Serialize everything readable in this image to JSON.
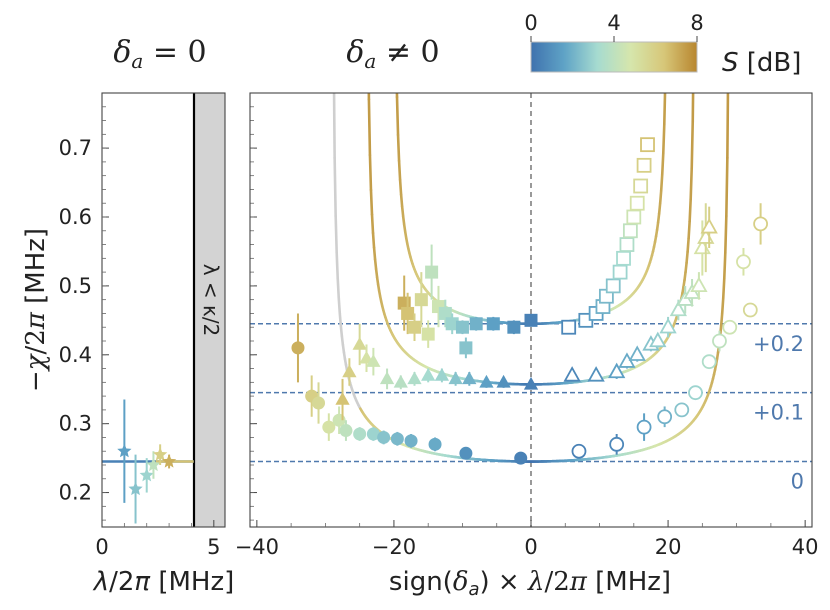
{
  "colors": {
    "cmap": [
      "#3f72ae",
      "#5fa3c6",
      "#a6dbd0",
      "#d6e6ac",
      "#d7c779",
      "#b8862f"
    ],
    "dash": "#4f79ad",
    "center_line": "#808080",
    "bound_shade": "#d3d3d3",
    "grey_curve": "#cfcfcf"
  },
  "colorbar": {
    "label": "S [dB]",
    "ticks": [
      "0",
      "4",
      "8"
    ],
    "range": [
      0,
      8
    ]
  },
  "titles": {
    "left": "δa = 0",
    "right": "δa ≠ 0"
  },
  "chart_data": [
    {
      "panel": "left",
      "type": "scatter",
      "title": "δa = 0",
      "xlabel": "λ/2π [MHz]",
      "ylabel": "−χ/2π [MHz]",
      "xlim": [
        0,
        5.5
      ],
      "ylim": [
        0.15,
        0.78
      ],
      "xticks": [
        "0",
        "5"
      ],
      "yticks": [
        "0.2",
        "0.3",
        "0.4",
        "0.5",
        "0.6",
        "0.7"
      ],
      "bound_label": "λ < κ/2",
      "bound_x": 4.1,
      "baseline_y": 0.245,
      "points": [
        {
          "x": 1.0,
          "y": 0.26,
          "err": 0.075,
          "S": 1.5,
          "marker": "star"
        },
        {
          "x": 1.5,
          "y": 0.205,
          "err": 0.05,
          "S": 2.5,
          "marker": "star"
        },
        {
          "x": 2.0,
          "y": 0.225,
          "err": 0.025,
          "S": 3.0,
          "marker": "star"
        },
        {
          "x": 2.3,
          "y": 0.24,
          "err": 0.02,
          "S": 4.0,
          "marker": "star"
        },
        {
          "x": 2.6,
          "y": 0.255,
          "err": 0.015,
          "S": 6.0,
          "marker": "star"
        },
        {
          "x": 3.0,
          "y": 0.245,
          "err": 0.01,
          "S": 7.0,
          "marker": "star"
        }
      ]
    },
    {
      "panel": "right",
      "type": "scatter",
      "title": "δa ≠ 0",
      "xlabel": "sign(δa) × λ/2π [MHz]",
      "xlim": [
        -41,
        41
      ],
      "ylim": [
        0.15,
        0.78
      ],
      "xticks": [
        "−40",
        "−20",
        "0",
        "20",
        "40"
      ],
      "offsets": [
        {
          "label": "+0.2",
          "y": 0.445
        },
        {
          "label": "+0.1",
          "y": 0.345
        },
        {
          "label": "0",
          "y": 0.245
        }
      ],
      "series": [
        {
          "name": "circles",
          "marker": "circle",
          "offset": 0,
          "points": [
            {
              "x": -34,
              "y": 0.41,
              "err": 0.05,
              "S": 7
            },
            {
              "x": -32,
              "y": 0.34,
              "err": 0.03,
              "S": 6
            },
            {
              "x": -31,
              "y": 0.33,
              "err": 0.03,
              "S": 5.5
            },
            {
              "x": -29.5,
              "y": 0.295,
              "err": 0.02,
              "S": 5
            },
            {
              "x": -28,
              "y": 0.305,
              "err": 0.02,
              "S": 4.5
            },
            {
              "x": -27,
              "y": 0.29,
              "err": 0.015,
              "S": 4
            },
            {
              "x": -25,
              "y": 0.285,
              "err": 0.01,
              "S": 3.5
            },
            {
              "x": -23,
              "y": 0.285,
              "err": 0.01,
              "S": 3
            },
            {
              "x": -21.5,
              "y": 0.28,
              "err": 0.01,
              "S": 2.5
            },
            {
              "x": -19.5,
              "y": 0.278,
              "err": 0.01,
              "S": 2.2
            },
            {
              "x": -17.5,
              "y": 0.275,
              "err": 0.01,
              "S": 2
            },
            {
              "x": -14,
              "y": 0.27,
              "err": 0.01,
              "S": 1.8
            },
            {
              "x": -9.5,
              "y": 0.257,
              "err": 0.008,
              "S": 1
            },
            {
              "x": -1.5,
              "y": 0.25,
              "err": 0.006,
              "S": 0.5
            },
            {
              "x": 7,
              "y": 0.26,
              "err": 0.006,
              "S": 0.5,
              "open": true
            },
            {
              "x": 12.5,
              "y": 0.27,
              "err": 0.015,
              "S": 0.7,
              "open": true
            },
            {
              "x": 16.5,
              "y": 0.295,
              "err": 0.02,
              "S": 1.5,
              "open": true
            },
            {
              "x": 19.5,
              "y": 0.31,
              "err": 0.015,
              "S": 2,
              "open": true
            },
            {
              "x": 22,
              "y": 0.32,
              "err": 0.01,
              "S": 2.5,
              "open": true
            },
            {
              "x": 24,
              "y": 0.345,
              "err": 0.01,
              "S": 3,
              "open": true
            },
            {
              "x": 26,
              "y": 0.39,
              "err": 0.01,
              "S": 3.5,
              "open": true
            },
            {
              "x": 27.5,
              "y": 0.42,
              "err": 0.015,
              "S": 4,
              "open": true
            },
            {
              "x": 29,
              "y": 0.44,
              "err": 0.01,
              "S": 4.5,
              "open": true
            },
            {
              "x": 31,
              "y": 0.535,
              "err": 0.02,
              "S": 5,
              "open": true
            },
            {
              "x": 32,
              "y": 0.465,
              "err": 0.01,
              "S": 5.5,
              "open": true
            },
            {
              "x": 33.5,
              "y": 0.59,
              "err": 0.03,
              "S": 6,
              "open": true
            }
          ]
        },
        {
          "name": "triangles",
          "marker": "triangle",
          "offset": 0.1,
          "points": [
            {
              "x": -27.5,
              "y": 0.335,
              "err": 0.03,
              "S": 6.5
            },
            {
              "x": -26.5,
              "y": 0.375,
              "err": 0.02,
              "S": 6
            },
            {
              "x": -25,
              "y": 0.415,
              "err": 0.03,
              "S": 5.5
            },
            {
              "x": -24,
              "y": 0.395,
              "err": 0.02,
              "S": 5
            },
            {
              "x": -23,
              "y": 0.39,
              "err": 0.02,
              "S": 4.5
            },
            {
              "x": -21,
              "y": 0.365,
              "err": 0.015,
              "S": 4
            },
            {
              "x": -19,
              "y": 0.36,
              "err": 0.01,
              "S": 3.8
            },
            {
              "x": -17,
              "y": 0.365,
              "err": 0.01,
              "S": 3.5
            },
            {
              "x": -15,
              "y": 0.37,
              "err": 0.01,
              "S": 3.2
            },
            {
              "x": -13,
              "y": 0.37,
              "err": 0.01,
              "S": 3
            },
            {
              "x": -11,
              "y": 0.365,
              "err": 0.01,
              "S": 2.5
            },
            {
              "x": -9,
              "y": 0.365,
              "err": 0.01,
              "S": 2
            },
            {
              "x": -6.5,
              "y": 0.36,
              "err": 0.008,
              "S": 1.5
            },
            {
              "x": -4,
              "y": 0.36,
              "err": 0.008,
              "S": 1
            },
            {
              "x": 0,
              "y": 0.357,
              "err": 0.006,
              "S": 0.5
            },
            {
              "x": 6,
              "y": 0.37,
              "err": 0.008,
              "S": 0.7,
              "open": true
            },
            {
              "x": 9.5,
              "y": 0.37,
              "err": 0.008,
              "S": 1,
              "open": true
            },
            {
              "x": 12.5,
              "y": 0.375,
              "err": 0.01,
              "S": 1.5,
              "open": true
            },
            {
              "x": 14,
              "y": 0.39,
              "err": 0.01,
              "S": 1.8,
              "open": true
            },
            {
              "x": 15.5,
              "y": 0.4,
              "err": 0.01,
              "S": 2,
              "open": true
            },
            {
              "x": 17.5,
              "y": 0.415,
              "err": 0.01,
              "S": 2.5,
              "open": true
            },
            {
              "x": 18.5,
              "y": 0.42,
              "err": 0.01,
              "S": 2.8,
              "open": true
            },
            {
              "x": 20,
              "y": 0.44,
              "err": 0.015,
              "S": 3,
              "open": true
            },
            {
              "x": 21.5,
              "y": 0.465,
              "err": 0.015,
              "S": 3.5,
              "open": true
            },
            {
              "x": 22.5,
              "y": 0.48,
              "err": 0.02,
              "S": 3.8,
              "open": true
            },
            {
              "x": 23.5,
              "y": 0.49,
              "err": 0.02,
              "S": 4,
              "open": true
            },
            {
              "x": 24.5,
              "y": 0.5,
              "err": 0.02,
              "S": 4.5,
              "open": true
            },
            {
              "x": 25,
              "y": 0.555,
              "err": 0.04,
              "S": 5,
              "open": true
            },
            {
              "x": 25.5,
              "y": 0.57,
              "err": 0.05,
              "S": 5.5,
              "open": true
            },
            {
              "x": 26,
              "y": 0.585,
              "err": 0.03,
              "S": 6,
              "open": true
            }
          ]
        },
        {
          "name": "squares",
          "marker": "square",
          "offset": 0.2,
          "points": [
            {
              "x": -18.5,
              "y": 0.475,
              "err": 0.04,
              "S": 7
            },
            {
              "x": -18,
              "y": 0.46,
              "err": 0.03,
              "S": 6.5
            },
            {
              "x": -17,
              "y": 0.44,
              "err": 0.02,
              "S": 6
            },
            {
              "x": -16,
              "y": 0.48,
              "err": 0.04,
              "S": 5.5
            },
            {
              "x": -15,
              "y": 0.43,
              "err": 0.02,
              "S": 5
            },
            {
              "x": -14.5,
              "y": 0.52,
              "err": 0.04,
              "S": 4
            },
            {
              "x": -13.5,
              "y": 0.47,
              "err": 0.03,
              "S": 4.5
            },
            {
              "x": -12.5,
              "y": 0.46,
              "err": 0.02,
              "S": 3.5
            },
            {
              "x": -11.5,
              "y": 0.445,
              "err": 0.015,
              "S": 3
            },
            {
              "x": -10,
              "y": 0.44,
              "err": 0.01,
              "S": 2.5
            },
            {
              "x": -9.5,
              "y": 0.41,
              "err": 0.015,
              "S": 2.5
            },
            {
              "x": -8,
              "y": 0.445,
              "err": 0.01,
              "S": 2
            },
            {
              "x": -5.5,
              "y": 0.445,
              "err": 0.01,
              "S": 1.5
            },
            {
              "x": -2.5,
              "y": 0.44,
              "err": 0.01,
              "S": 1
            },
            {
              "x": 0,
              "y": 0.45,
              "err": 0.008,
              "S": 0.5
            },
            {
              "x": 5.5,
              "y": 0.44,
              "err": 0.008,
              "S": 0.7,
              "open": true
            },
            {
              "x": 8,
              "y": 0.45,
              "err": 0.008,
              "S": 1,
              "open": true
            },
            {
              "x": 9.5,
              "y": 0.46,
              "err": 0.01,
              "S": 1.5,
              "open": true
            },
            {
              "x": 10.5,
              "y": 0.47,
              "err": 0.01,
              "S": 2,
              "open": true
            },
            {
              "x": 11,
              "y": 0.485,
              "err": 0.01,
              "S": 2.2,
              "open": true
            },
            {
              "x": 12,
              "y": 0.5,
              "err": 0.01,
              "S": 2.5,
              "open": true
            },
            {
              "x": 13,
              "y": 0.52,
              "err": 0.01,
              "S": 3,
              "open": true
            },
            {
              "x": 13.5,
              "y": 0.54,
              "err": 0.01,
              "S": 3.2,
              "open": true
            },
            {
              "x": 14,
              "y": 0.56,
              "err": 0.01,
              "S": 3.5,
              "open": true
            },
            {
              "x": 14.5,
              "y": 0.58,
              "err": 0.01,
              "S": 4,
              "open": true
            },
            {
              "x": 15,
              "y": 0.6,
              "err": 0.01,
              "S": 4.5,
              "open": true
            },
            {
              "x": 15.5,
              "y": 0.62,
              "err": 0.01,
              "S": 5,
              "open": true
            },
            {
              "x": 16,
              "y": 0.645,
              "err": 0.01,
              "S": 5.5,
              "open": true
            },
            {
              "x": 16.5,
              "y": 0.675,
              "err": 0.01,
              "S": 6,
              "open": true
            },
            {
              "x": 17,
              "y": 0.705,
              "err": 0.01,
              "S": 6.5,
              "open": true
            }
          ]
        }
      ],
      "curves": [
        {
          "name": "curve-0",
          "offset": 0,
          "ymin": 0.245,
          "L": 29,
          "xmin": -42,
          "xmax": 38
        },
        {
          "name": "curve-0.1",
          "offset": 0.1,
          "ymin": 0.357,
          "L": 24,
          "xmin": -31,
          "xmax": 31
        },
        {
          "name": "curve-0.2",
          "offset": 0.2,
          "ymin": 0.445,
          "L": 20,
          "xmin": -24.5,
          "xmax": 25
        }
      ]
    }
  ]
}
